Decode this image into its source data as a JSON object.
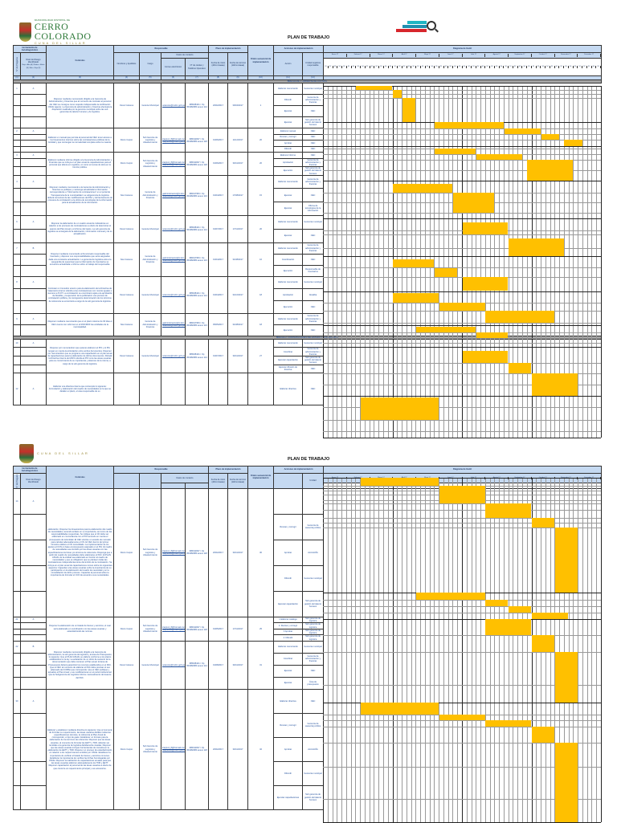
{
  "header": {
    "org_name": "CERRO COLORADO",
    "org_top": "MUNICIPALIDAD DISTRITAL DE",
    "org_sub": "CUNA DEL SILLAR",
    "document_title": "PLAN DE TRABAJO"
  },
  "columns": {
    "group_herramienta": "Herramienta de Autodiagnóstico",
    "n_pregunta": "N° de Pregunta",
    "nivel_riesgo": "Nivel de Riesgo Identificado",
    "nivel_riesgo_note": "Bajo = Alto (A) / Medio = Medio (M) / Alto = Bajo (B)",
    "controles": "Controles",
    "group_responsable": "Responsable",
    "nombres": "Nombres y Apellidos",
    "cargo": "Cargo",
    "group_contacto": "Datos de contacto",
    "correo": "Correo electrónico",
    "telefono": "N° de celular y Teléfono Operativo",
    "group_plazo": "Plazo de implementación",
    "fecha_inicio": "Fecha de inicio (dd/mm/aaaa)",
    "fecha_termino": "Fecha de término (dd/mm/aaaa)",
    "orden": "Orden secuencial de implementación",
    "group_acciones": "Acciones de implementación",
    "accion": "Acción",
    "unidad": "Unidad orgánica responsable",
    "unidad_short": "Unidad",
    "group_gantt": "Diagrama de Gantt",
    "numbers": [
      "(1)",
      "(2)",
      "(3)",
      "(4)",
      "(5)",
      "(6)",
      "(7)",
      "(8)",
      "(9)",
      "(10)",
      "(11)",
      "(12)"
    ]
  },
  "months": [
    "Enero 17",
    "Febrero 17",
    "Marzo 17",
    "Abril 17",
    "Mayo 17",
    "Junio 17",
    "Julio 17",
    "Agosto 17",
    "Septiembre 17",
    "Octubre 17",
    "Noviembre 17",
    "Diciembre 17"
  ],
  "weeks": [
    "S1",
    "S2",
    "S3",
    "S4",
    "S5"
  ],
  "page1": {
    "section1": "BRECHA DE 1: AMBIENTE DE CONTROL",
    "section2": "BRECHA 2: CONTRATACIONES DEL ESTADO Y SU EJECUCIÓN",
    "rows": [
      {
        "n": "1",
        "nivel": "A",
        "control": "Disponer mediante memorando dirigido a la Gerencia de Administración y Finanzas que al momento de contratar al personal del OEC se consigne como requisito indispensable la certificación OSCE vigente. La Gerencia de administración y finanzas efectuará la disposición realizada por la gerencia municipal sobre las sub gerencias de talento humano y de logística.",
        "nombre": "Oscar Cáceres",
        "cargo": "Gerente Municipal",
        "correo": "ocaceres@mdcc.gob.pe",
        "telefono": "985028101 / Op 054382080 anexo 114",
        "inicio": "20/02/2017",
        "termino": "30/04/2017",
        "orden": "1",
        "acciones": [
          {
            "accion": "Elaborar memorando",
            "unidad": "Gerencia municipal"
          },
          {
            "accion": "Difundir",
            "unidad": "Gerencia de administración y finanzas"
          },
          {
            "accion": "Ejecutar",
            "unidad": "OEC"
          },
          {
            "accion": "Ejecutar",
            "unidad": "Sub gerencia de gestión del talento humano"
          }
        ]
      },
      {
        "n": "2",
        "nivel": "A",
        "control": "Elaborar un manual que permita al personal del OEC tener acceso a los lineamientos internos sobre las contrataciones públicas de la Entidad y que contengan la normatividad completa sobre la materia.",
        "nombre": "Rocío Carpio",
        "cargo": "Sub Gerente de Logística y Abastecimiento",
        "correo": "lcarpio1_8@hotmail.com; rcarpiocce@mdcc.gob.pe",
        "telefono": "986011827 / Op 054382080 anexo 118",
        "inicio": "01/06/2017",
        "termino": "11/12/2017",
        "orden": "20",
        "acciones": [
          {
            "accion": "Elaborar manual",
            "unidad": "OEC"
          },
          {
            "accion": "Revisar y corregir",
            "unidad": "OEC"
          },
          {
            "accion": "Aprobar",
            "unidad": "OEC"
          },
          {
            "accion": "Difundir",
            "unidad": "OEC"
          }
        ]
      },
      {
        "n": "3",
        "nivel": "A",
        "control": "Elaborar mediante informe dirigido a la Gerencia de Administración y Finanzas que se incluya en el plan anual de capacitaciones para el personal que labora en Logística, un curso en temas de ética en la función pública.",
        "nombre": "Rocío Carpio",
        "cargo": "Sub Gerente de Logística y Abastecimiento",
        "correo": "lcarpio1_8@hotmail.com; rcarpiocce@mdcc.gob.pe",
        "telefono": "986011827 / Op 054382080 anexo 118",
        "inicio": "01/06/2017",
        "termino": "30/11/2017",
        "orden": "20",
        "acciones": [
          {
            "accion": "Elaborar informe",
            "unidad": "OEC"
          },
          {
            "accion": "Aprobación",
            "unidad": "Gerencia de administración y finanzas"
          },
          {
            "accion": "Ejecución",
            "unidad": "Sub gerencia de gestión del talento humano"
          }
        ]
      },
      {
        "n": "4",
        "nivel": "A",
        "control": "Disponer mediante memorando a la Gerencia de Administración y finanzas se publique y mantenga actualizada la información correspondiente a \"Información de contrataciones\" en el portal de Transparencia de la municipalidad. La subgerencia de logística deberá comunicar de las modificaciones del PAC y del lanzamiento de procesos de contratación a la oficina de tecnologías de la información para la actualización de la información.",
        "nombre": "Noé Cáceres",
        "cargo": "Gerente de Administración y Finanzas",
        "correo": "gadministracion@mdcc.gob.pe; ncaceres@mdcc.gob.pe",
        "telefono": "980017953 / Op 054382080 anexo 113",
        "inicio": "01/04/2017",
        "termino": "17/08/2017",
        "orden": "15",
        "acciones": [
          {
            "accion": "Elaborar memorando",
            "unidad": "Gerencia de administración y finanzas"
          },
          {
            "accion": "Ejecutar",
            "unidad": "OEC"
          },
          {
            "accion": "Ejecutar",
            "unidad": "Oficina de tecnologías de la información"
          }
        ]
      },
      {
        "n": "6",
        "nivel": "A",
        "control": "Disponer la elaboración de un cuadro anual de indicadores en relación a los procesos de contrataciones a efecto de determinar el avance del Plan Anual y el informe del Gasto. La sub gerencia de logística se encargará de la elaboración, información mensual y de su actualización.",
        "nombre": "Oscar Cáceres",
        "cargo": "Gerente Municipal",
        "correo": "ocaceres@mdcc.gob.pe",
        "telefono": "985028101 / Op 054382080 anexo 114",
        "inicio": "01/07/2017",
        "termino": "17/11/2017",
        "orden": "20",
        "acciones": [
          {
            "accion": "Elaborar memorando",
            "unidad": "Gerencia municipal"
          },
          {
            "accion": "Ejecutar",
            "unidad": "OEC"
          }
        ]
      },
      {
        "n": "7",
        "nivel": "B",
        "control": "Disponer mediante memorando al Funcionario responsable del Inventario y disponer sus responsabilidades que sería asignadas dada una constante actualización. La gerencia de logística está a la vanguardia de supervisar que la información de Inventarios se encuentre actualizada e informe sobre el trabajo del responsable.",
        "nombre": "Noé Cáceres",
        "cargo": "Gerente de Administración y Finanzas",
        "correo": "gadministracion@mdcc.gob.pe; ncaceres@mdcc.gob.pe",
        "telefono": "980017953 / Op 054382080 anexo 113",
        "inicio": "01/04/2017",
        "termino": "31/08/2017",
        "orden": "16",
        "acciones": [
          {
            "accion": "Elaborar memorando",
            "unidad": "Gerencia de administración y finanzas"
          },
          {
            "accion": "Coordinación",
            "unidad": "OEC"
          },
          {
            "accion": "Ejecución",
            "unidad": "Responsable de Inventarios"
          }
        ]
      },
      {
        "n": "8",
        "nivel": "A",
        "control": "Contratar un Consultor externo para la elaboración de la Directiva de tratamiento interno referida a las contrataciones con montos iguales o menores a 8 UIT. La contratación se encontrará sujeta a la aprobación de Alcaldía, y la ejecución de la publicación una proceso de contratación pública y la consiguiente determinación de los términos de referencia se encontrará a cargo de la sub gerencia de logística.",
        "nombre": "Oscar Cáceres",
        "cargo": "Gerente Municipal",
        "correo": "ocaceres@mdcc.gob.pe",
        "telefono": "985028101 / Op 054382080 anexo 114",
        "inicio": "01/04/2017",
        "termino": "31/10/2017",
        "orden": "18",
        "acciones": [
          {
            "accion": "Elaborar memorando",
            "unidad": "Gerencia municipal"
          },
          {
            "accion": "Aprobación",
            "unidad": "Alcaldía"
          },
          {
            "accion": "Ejecución",
            "unidad": "OEC"
          }
        ]
      },
      {
        "n": "9",
        "nivel": "A",
        "control": "Disponer mediante memorando que en el plazo máximo de 90 días el OEC cuente con reformar en el ROF/MOF las entidades de la municipalidad.",
        "nombre": "Noé Cáceres",
        "cargo": "Gerente de Administración y Finanzas",
        "correo": "gadministracion@mdcc.gob.pe; ncaceres@mdcc.gob.pe",
        "telefono": "980017953 / Op 054382080 anexo 113",
        "inicio": "05/05/2017",
        "termino": "31/08/2017",
        "orden": "18",
        "acciones": [
          {
            "accion": "Elaborar memorando",
            "unidad": "Gerencia de administración y finanzas"
          },
          {
            "accion": "Ejecución",
            "unidad": "OEC"
          }
        ]
      },
      {
        "n": "10",
        "nivel": "A",
        "control": "Disponer por memorandum que quienes elaboren el PIO y el PIA tengan en cuenta la articulación entre ambos documentos. Disponer por memorandum que se programe una capacitación en el plan anual de capacitaciones para la elaboración de dichos documentos. Dictado la Directiva Interna del 2015 referida al PIO cons las áreas usuarias para su conocimiento de su importancia y alcances de la misma, a cargo de la sub gerencia de logística.",
        "nombre": "Oscar Cáceres",
        "cargo": "Gerente Municipal",
        "correo": "ocaceres@mdcc.gob.pe",
        "telefono": "985028101 / Op 054382080 anexo 114",
        "inicio": "01/07/2017",
        "termino": "30/11/2017",
        "orden": "27",
        "acciones": [
          {
            "accion": "Elaborar memorando",
            "unidad": "Gerencia municipal"
          },
          {
            "accion": "Coordinar",
            "unidad": "Gerencia de administración y finanzas"
          },
          {
            "accion": "Ejecutar capacitación",
            "unidad": "Sub gerencia de gestión del talento humano"
          },
          {
            "accion": "Ejecutar difusión de directiva",
            "unidad": "OEC"
          }
        ]
      },
      {
        "n": "12",
        "nivel": "A",
        "control": "Elaborar una directiva interna que contemple lo siguiente: Formulación y elaboración del cuadro de necesidades en la que se detallen el plazo, el área responsable de su",
        "nombre": "",
        "cargo": "",
        "correo": "",
        "telefono": "",
        "inicio": "",
        "termino": "",
        "orden": "",
        "acciones": [
          {
            "accion": "Elaborar directiva",
            "unidad": "OEC"
          }
        ]
      }
    ]
  },
  "page2": {
    "rows": [
      {
        "n": "14",
        "nivel": "A",
        "nombre": "Rocío Carpio",
        "cargo": "Sub Gerente de Logística y Abastecimiento",
        "correo": "lcarpio1_8@hotmail.com; rcarpiocce@mdcc.gob.pe",
        "telefono": "986011827 / Op 054382080 anexo 118",
        "inicio": "20/02/2017",
        "termino": "30/11/2017",
        "orden": "30",
        "control": "elaboración. Disponer los lineamientos para la elaboración del cuadro de necesidades, teniendo énfasis en su importancia, así como de las responsabilidades respectivas. Se indique que el CN debe ser elaborado en concordancia con el PIO teniendo en cuenta el presupuesto de la Entidad. El OEC efectúe un estudio de mercado para calcular adecuadamente el CN. El OEC dentro del primer trimestre elabore el CN consolidado. La implementación de los ajustes al CCN en base al presupuesto asignado en el PIA. El cuadro de necesidades sea remitido por las áreas usuarias con las especificaciones técnicas y/o términos de referencia. Disponga que a partir del cuadro de necesidades debe elaborarse el PAC. El PLAN ANUAL de la entidad sea elaborado en función al cuadro de necesidades y que es obligatorio que se planteen todas las contrataciones independientemente del ámbito de la contratación. Se incluya en el plan anual de capacitaciones cursos sobre los siguientes aspectos: Capacitar a las áreas usuarias sobre la importancia de su participación en la elaboración del cuadro de necesidad y en la consolidación de dicho proceso. Capacitar al personal sobre la importancia de formular el CCN de acuerdo a sus necesidades.",
        "acciones": [
          {
            "accion": "",
            "unidad": ""
          },
          {
            "accion": "Revisar y corregir",
            "unidad": "Gerencia de asesoría jurídica"
          },
          {
            "accion": "Aprobar",
            "unidad": "ALCALDÍA"
          },
          {
            "accion": "Difundir",
            "unidad": "Gerencia municipal"
          },
          {
            "accion": "Ejecutar capacitación",
            "unidad": "Sub gerencia de gestión del talento humano"
          }
        ]
      },
      {
        "n": "21",
        "nivel": "A",
        "nombre": "Rocío Carpio",
        "cargo": "Sub Gerente de Logística y Abastecimiento",
        "correo": "lcarpio1_8@hotmail.com; rcarpiocce@mdcc.gob.pe",
        "telefono": "986011827 / Op 054382080 anexo 118",
        "inicio": "01/05/2017",
        "termino": "17/11/2017",
        "orden": "25",
        "control": "Disponer la elaboración de un listado de bienes y servicios, el cual sería elaborado en coordinación con las áreas usuarias y estandarizando las normas.",
        "acciones": [
          {
            "accion": "1 Elaborar catálogo",
            "unidad": "Sub gerencia de logística"
          },
          {
            "accion": "2. Revisar y corregir",
            "unidad": "Sub gerencia de logística"
          },
          {
            "accion": "3 Aprobar",
            "unidad": "Sub gerencia de logística"
          },
          {
            "accion": "4. Difundir",
            "unidad": "Sub gerencia de logística"
          }
        ]
      },
      {
        "n": "22",
        "nivel": "B",
        "nombre": "Oscar Cáceres",
        "cargo": "Gerente Municipal",
        "correo": "ocaceres@mdcc.gob.pe",
        "telefono": "985028101 / Op 054382080 anexo 114",
        "inicio": "01/08/2017",
        "termino": "30/11/2017",
        "orden": "31",
        "control": "Disponer mediante memorando dirigido a la Gerencia de administración, la sub gerencia de logística y al área de Presupuesto, lo siguiente: Que el PLAN ANUAL se elabore conforme a los plazos establecidos en la ley. La aclaración de un oficio de sustento de la documentación que debe contener el Plan anual. El área de Presupuesto deberá garantizar los recursos establecidos en el PAC. Que el OEC al momento de elaborar el PAC debe precisar el uso adecuado del CUBSo que corresponde. Que el OEC publique y actualice el Plan Anual y sus modificaciones en el portal institucional. Que la Subgerencia de Logística informe mensualmente del avance del PAC.",
        "acciones": [
          {
            "accion": "Elaborar memorando",
            "unidad": "Gerencia municipal"
          },
          {
            "accion": "Coordinar",
            "unidad": "Gerencia de administración y finanzas"
          },
          {
            "accion": "Ejecutar",
            "unidad": "OEC"
          },
          {
            "accion": "Ejecutar",
            "unidad": "Área de presupuesto"
          }
        ]
      },
      {
        "n": "30",
        "nivel": "A",
        "nombre": "Rocío Carpio",
        "cargo": "Sub Gerente de Logística y Abastecimiento",
        "correo": "lcarpio1_8@hotmail.com; rcarpiocce@mdcc.gob.pe",
        "telefono": "986011827 / Op 054382080 anexo 118",
        "inicio": "20/02/2017",
        "termino": "30/11/2017",
        "orden": "32",
        "control": "Elaborar y establecer mediante directiva lo siguiente: Que al momento de formular su requerimiento, las áreas usuarias detallen todas las especificaciones técnicas, la referencia al Plan Anual de corresponder, el tipo de gasto. Establecer un formato para la elaboración de los términos de referencia. Disponer que las áreas usuarias, al momento de formular las EETT y TDR, deberán ser remitidas a la gerencia de logística debidamente visadas. Disponer que las áreas usuarias incluyan herramientas de consulta en la elaboración de EETT y TDR. Disponer un proceso de estandarización en relación a los requerimientos emitidos por OSCE. Establecer la importancia de verificar el listado de bienes y servicios comunes. Establecer la importancia de verificar las fichas homologadas por OSCE. Disponer la realización de capacitaciones anuales para que las áreas usuarias elaboren adecuadamente los TDR y EETT. Disponer capacitación al personal de las áreas usuarias a efecto de que conozca un requerimiento principal y sus accesorios.",
        "acciones": [
          {
            "accion": "Elaborar directiva",
            "unidad": "OEC"
          },
          {
            "accion": "Revisar y corregir",
            "unidad": "Gerencia de asesoría jurídica"
          },
          {
            "accion": "Aprobar",
            "unidad": "ALCALDÍA"
          },
          {
            "accion": "Difundir",
            "unidad": "Gerencia municipal"
          },
          {
            "accion": "Ejecutar capacitaciones",
            "unidad": "Sub gerencia de gestión del talento humano"
          }
        ]
      }
    ]
  },
  "chart_data": {
    "type": "table",
    "title": "Diagrama de Gantt",
    "bar_color": "#ffc000",
    "months": [
      "Enero 17",
      "Febrero 17",
      "Marzo 17",
      "Abril 17",
      "Mayo 17",
      "Junio 17",
      "Julio 17",
      "Agosto 17",
      "Septiembre 17",
      "Octubre 17",
      "Noviembre 17",
      "Diciembre 17"
    ]
  }
}
